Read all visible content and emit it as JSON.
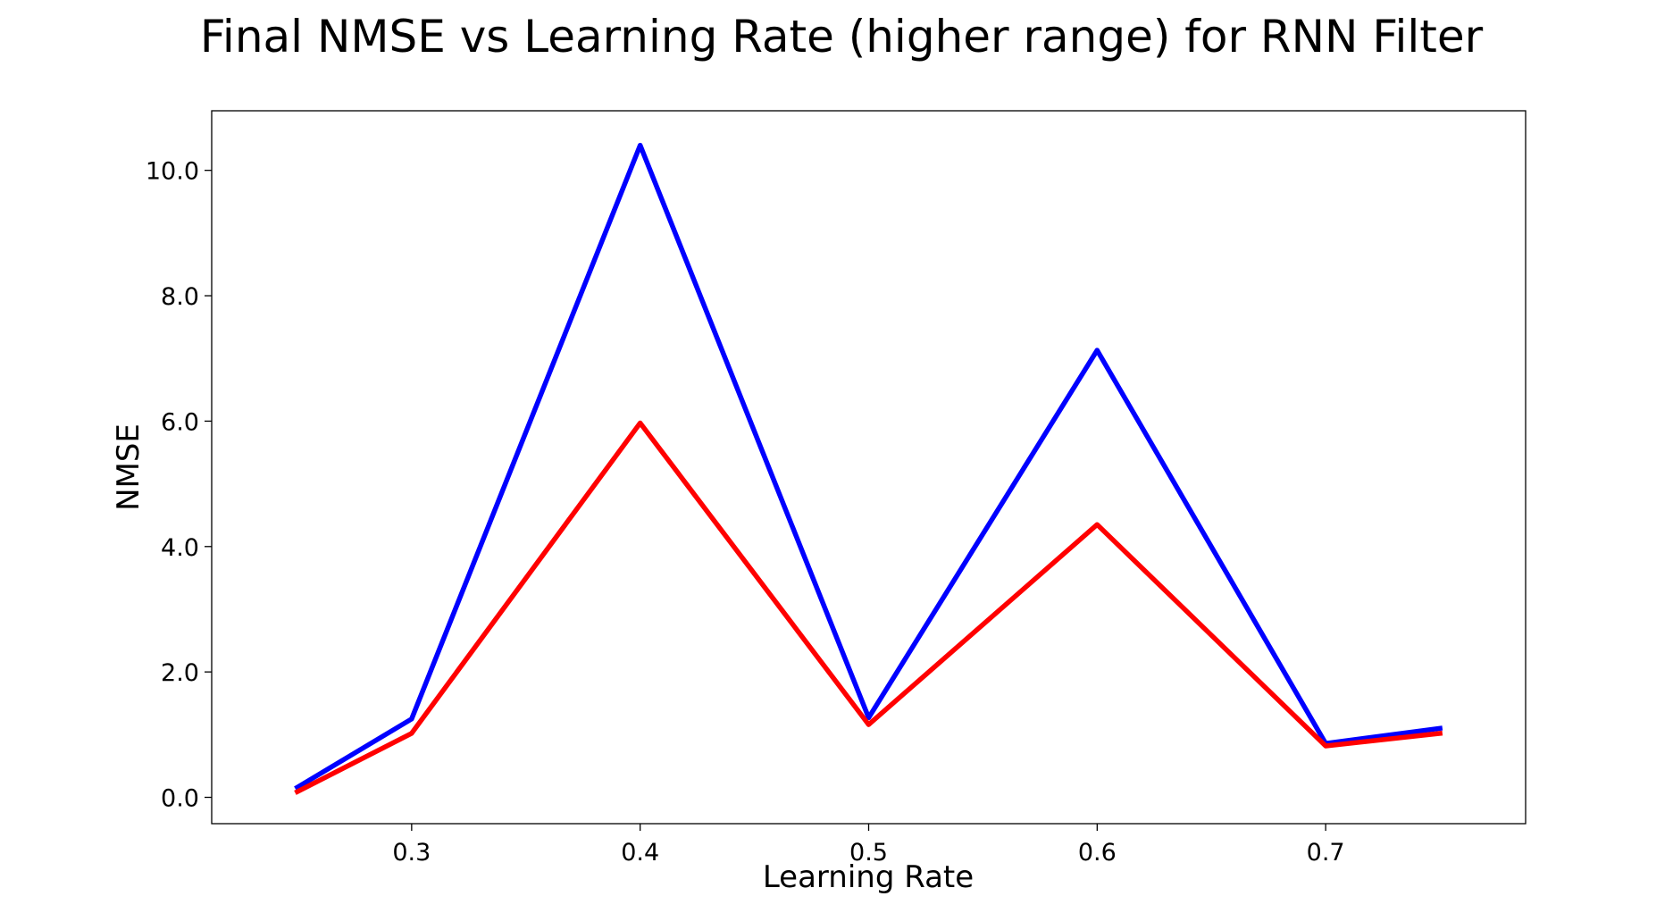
{
  "chart_data": {
    "type": "line",
    "title": "Final NMSE vs Learning Rate (higher range) for RNN Filter",
    "xlabel": "Learning Rate",
    "ylabel": "NMSE",
    "x": [
      0.25,
      0.3,
      0.4,
      0.5,
      0.6,
      0.7,
      0.75
    ],
    "xlim": [
      0.2125,
      0.7875
    ],
    "ylim": [
      -0.42,
      10.95
    ],
    "x_ticks": [
      0.3,
      0.4,
      0.5,
      0.6,
      0.7
    ],
    "x_tick_labels": [
      "0.3",
      "0.4",
      "0.5",
      "0.6",
      "0.7"
    ],
    "y_ticks": [
      0,
      2,
      4,
      6,
      8,
      10
    ],
    "y_tick_labels": [
      "0.0",
      "2.0",
      "4.0",
      "6.0",
      "8.0",
      "10.0"
    ],
    "grid": false,
    "series": [
      {
        "color": "#0000ff",
        "values": [
          0.16,
          1.25,
          10.4,
          1.27,
          7.13,
          0.86,
          1.1
        ]
      },
      {
        "color": "#ff0000",
        "values": [
          0.09,
          1.02,
          5.97,
          1.16,
          4.35,
          0.82,
          1.02
        ]
      }
    ]
  }
}
